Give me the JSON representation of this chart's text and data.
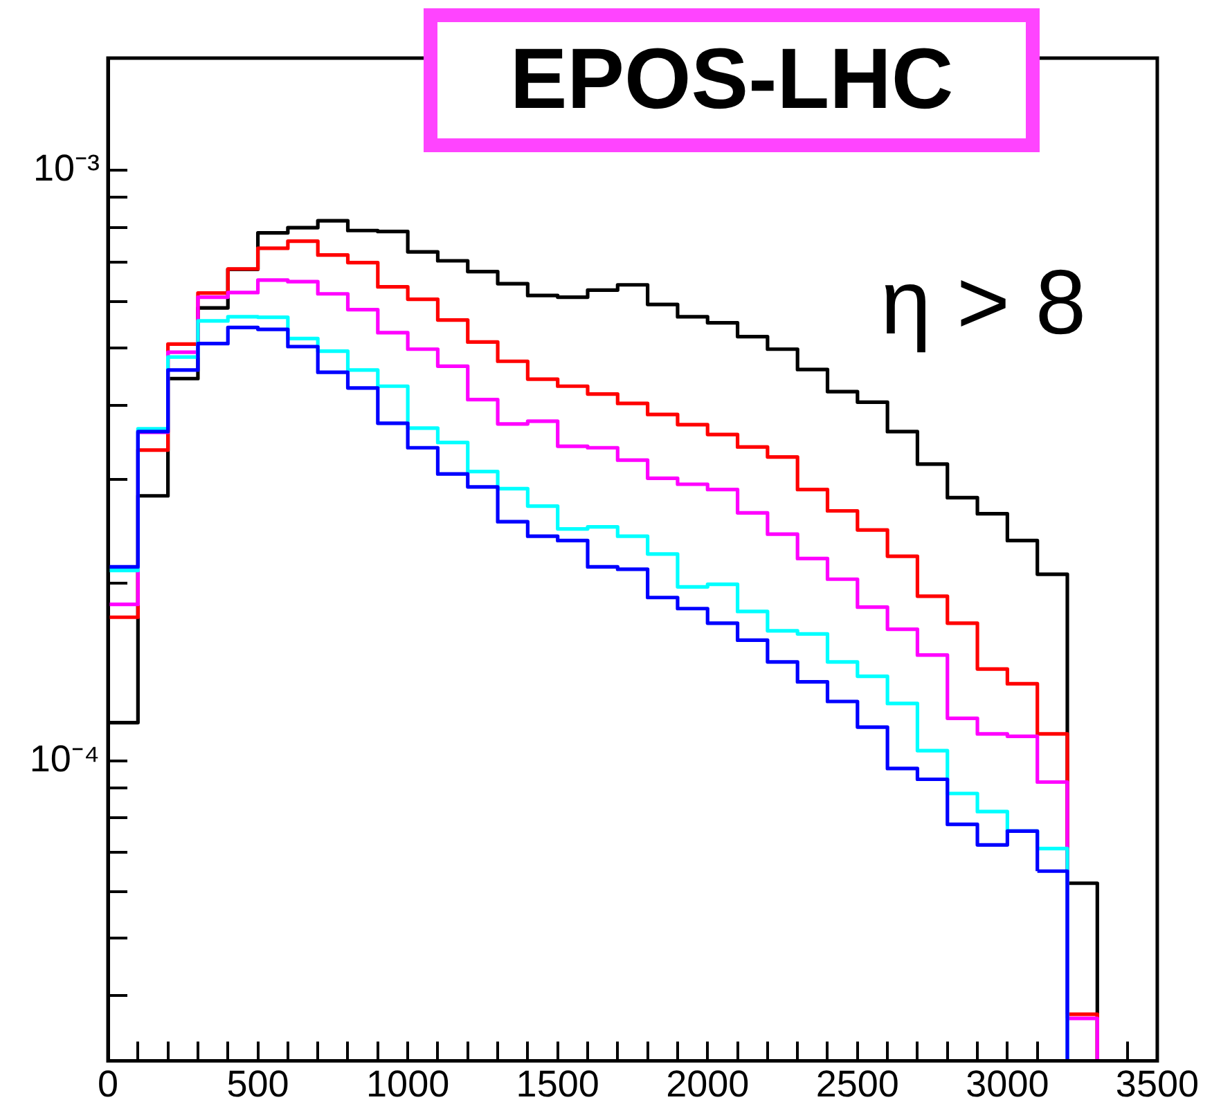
{
  "chart_data": {
    "type": "histogram",
    "log": true,
    "bins": [
      0,
      100,
      200,
      300,
      400,
      500,
      600,
      700,
      800,
      900,
      1000,
      1100,
      1200,
      1300,
      1400,
      1500,
      1600,
      1700,
      1800,
      1900,
      2000,
      2100,
      2200,
      2300,
      2400,
      2500,
      2600,
      2700,
      2800,
      2900,
      3000,
      3100,
      3200,
      3300,
      3400,
      3500
    ],
    "series": [
      {
        "color": "#000000",
        "values": [
          0.000116,
          0.000281,
          0.000444,
          0.000585,
          0.00068,
          0.000784,
          0.0008,
          0.000822,
          0.000791,
          0.000788,
          0.000728,
          0.000703,
          0.000674,
          0.000643,
          0.000614,
          0.00061,
          0.000627,
          0.00064,
          0.000593,
          0.000565,
          0.000552,
          0.000523,
          0.000498,
          0.00046,
          0.000422,
          0.000405,
          0.000361,
          0.000318,
          0.000279,
          0.000262,
          0.000236,
          0.000207,
          6.2e-05,
          null,
          null
        ]
      },
      {
        "color": "#ff0000",
        "values": [
          0.000175,
          0.000336,
          0.000508,
          0.00062,
          0.000681,
          0.000738,
          0.000759,
          0.000719,
          0.000698,
          0.000635,
          0.000605,
          0.000558,
          0.000512,
          0.000475,
          0.000443,
          0.000431,
          0.000418,
          0.000403,
          0.000386,
          0.000371,
          0.000357,
          0.00034,
          0.000327,
          0.000288,
          0.000265,
          0.000246,
          0.000222,
          0.00019,
          0.000171,
          0.000143,
          0.000135,
          0.000111,
          3.72e-05,
          null,
          null
        ]
      },
      {
        "color": "#ff00ff",
        "values": [
          0.000184,
          0.00036,
          0.000492,
          0.00061,
          0.000621,
          0.000652,
          0.000648,
          0.000618,
          0.000581,
          0.000531,
          0.000498,
          0.000466,
          0.000409,
          0.000372,
          0.000376,
          0.000341,
          0.000339,
          0.000323,
          0.000301,
          0.000294,
          0.000288,
          0.000263,
          0.000242,
          0.00022,
          0.000203,
          0.000182,
          0.000167,
          0.000151,
          0.000118,
          0.000111,
          0.00011,
          9.2e-05,
          3.66e-05,
          null,
          null
        ]
      },
      {
        "color": "#00ffff",
        "values": [
          0.00021,
          0.000365,
          0.000483,
          0.000556,
          0.000565,
          0.000564,
          0.000519,
          0.000494,
          0.000459,
          0.000431,
          0.000366,
          0.000346,
          0.000309,
          0.000289,
          0.00027,
          0.000247,
          0.000249,
          0.00024,
          0.000224,
          0.000197,
          0.000199,
          0.000179,
          0.000166,
          0.000164,
          0.000147,
          0.000139,
          0.000125,
          0.000104,
          8.8e-05,
          8.2e-05,
          7.6e-05,
          7.1e-05,
          null,
          null,
          null
        ]
      },
      {
        "color": "#0000ff",
        "values": [
          0.000213,
          0.000361,
          0.000459,
          0.000509,
          0.000542,
          0.000538,
          0.000503,
          0.000455,
          0.000428,
          0.000373,
          0.000339,
          0.000306,
          0.000291,
          0.000254,
          0.00024,
          0.000236,
          0.000213,
          0.000211,
          0.000189,
          0.000181,
          0.000171,
          0.00016,
          0.000147,
          0.000136,
          0.000126,
          0.000114,
          9.7e-05,
          9.3e-05,
          7.8e-05,
          7.2e-05,
          7.6e-05,
          6.5e-05,
          null,
          null,
          null
        ]
      }
    ],
    "xlim": [
      0,
      3500
    ],
    "xticks": [
      0,
      {
        "value": 100,
        "label": null
      },
      {
        "value": 200,
        "label": null
      },
      {
        "value": 300,
        "label": null
      },
      {
        "value": 400,
        "label": null
      },
      500,
      {
        "value": 600,
        "label": null
      },
      {
        "value": 700,
        "label": null
      },
      {
        "value": 800,
        "label": null
      },
      {
        "value": 900,
        "label": null
      },
      1000,
      {
        "value": 1100,
        "label": null
      },
      {
        "value": 1200,
        "label": null
      },
      {
        "value": 1300,
        "label": null
      },
      {
        "value": 1400,
        "label": null
      },
      1500,
      {
        "value": 1600,
        "label": null
      },
      {
        "value": 1700,
        "label": null
      },
      {
        "value": 1800,
        "label": null
      },
      {
        "value": 1900,
        "label": null
      },
      2000,
      {
        "value": 2100,
        "label": null
      },
      {
        "value": 2200,
        "label": null
      },
      {
        "value": 2300,
        "label": null
      },
      {
        "value": 2400,
        "label": null
      },
      2500,
      {
        "value": 2600,
        "label": null
      },
      {
        "value": 2700,
        "label": null
      },
      {
        "value": 2800,
        "label": null
      },
      {
        "value": 2900,
        "label": null
      },
      3000,
      {
        "value": 3100,
        "label": null
      },
      {
        "value": 3200,
        "label": null
      },
      {
        "value": 3300,
        "label": null
      },
      {
        "value": 3400,
        "label": null
      },
      3500
    ],
    "ylim": [
      3.1e-05,
      0.00155
    ],
    "yticks": [
      {
        "value": 4e-05,
        "label": null
      },
      {
        "value": 5e-05,
        "label": null
      },
      {
        "value": 6e-05,
        "label": null
      },
      {
        "value": 7e-05,
        "label": null
      },
      {
        "value": 8e-05,
        "label": null
      },
      {
        "value": 9e-05,
        "label": null
      },
      {
        "value": 0.0001,
        "label": "10⁻⁴"
      },
      {
        "value": 0.0002,
        "label": null
      },
      {
        "value": 0.0003,
        "label": null
      },
      {
        "value": 0.0004,
        "label": null
      },
      {
        "value": 0.0005,
        "label": null
      },
      {
        "value": 0.0006,
        "label": null
      },
      {
        "value": 0.0007,
        "label": null
      },
      {
        "value": 0.0008,
        "label": null
      },
      {
        "value": 0.0009,
        "label": null
      },
      {
        "value": 0.001,
        "label": "10⁻³"
      }
    ],
    "annotations": [
      "EPOS-LHC",
      "η > 8"
    ]
  }
}
